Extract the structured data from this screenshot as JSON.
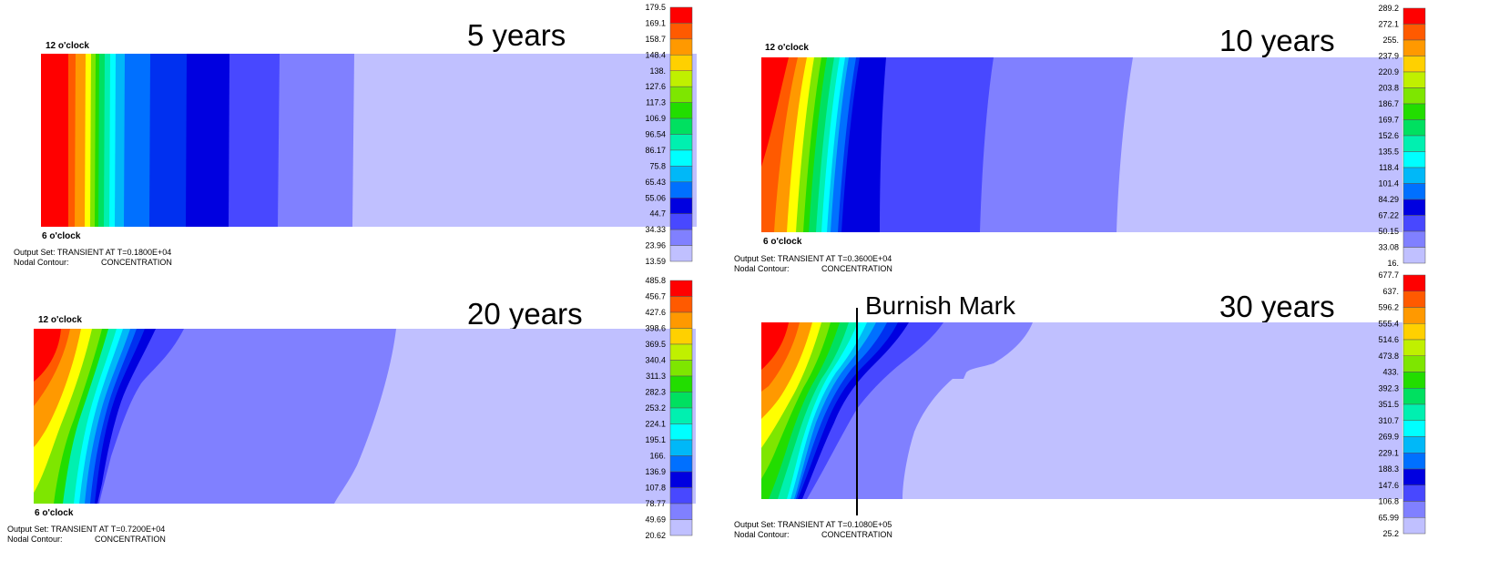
{
  "panels": [
    {
      "title": "5 years",
      "top_label": "12 o'clock",
      "bottom_label": "6 o'clock",
      "output_set": "Output Set: TRANSIENT AT T=0.1800E+04",
      "nodal_contour_key": "Nodal Contour:",
      "nodal_contour_value": "CONCENTRATION",
      "legend": [
        "179.5",
        "169.1",
        "158.7",
        "148.4",
        "138.",
        "127.6",
        "117.3",
        "106.9",
        "96.54",
        "86.17",
        "75.8",
        "65.43",
        "55.06",
        "44.7",
        "34.33",
        "23.96",
        "13.59"
      ]
    },
    {
      "title": "10 years",
      "top_label": "12 o'clock",
      "bottom_label": "6 o'clock",
      "output_set": "Output Set: TRANSIENT AT T=0.3600E+04",
      "nodal_contour_key": "Nodal Contour:",
      "nodal_contour_value": "CONCENTRATION",
      "legend": [
        "289.2",
        "272.1",
        "255.",
        "237.9",
        "220.9",
        "203.8",
        "186.7",
        "169.7",
        "152.6",
        "135.5",
        "118.4",
        "101.4",
        "84.29",
        "67.22",
        "50.15",
        "33.08",
        "16."
      ]
    },
    {
      "title": "20 years",
      "top_label": "12 o'clock",
      "bottom_label": "6 o'clock",
      "output_set": "Output Set: TRANSIENT AT T=0.7200E+04",
      "nodal_contour_key": "Nodal Contour:",
      "nodal_contour_value": "CONCENTRATION",
      "legend": [
        "485.8",
        "456.7",
        "427.6",
        "398.6",
        "369.5",
        "340.4",
        "311.3",
        "282.3",
        "253.2",
        "224.1",
        "195.1",
        "166.",
        "136.9",
        "107.8",
        "78.77",
        "49.69",
        "20.62"
      ]
    },
    {
      "title": "30 years",
      "top_label": "",
      "bottom_label": "",
      "output_set": "Output Set: TRANSIENT AT T=0.1080E+05",
      "nodal_contour_key": "Nodal Contour:",
      "nodal_contour_value": "CONCENTRATION",
      "legend": [
        "677.7",
        "637.",
        "596.2",
        "555.4",
        "514.6",
        "473.8",
        "433.",
        "392.3",
        "351.5",
        "310.7",
        "269.9",
        "229.1",
        "188.3",
        "147.6",
        "106.8",
        "65.99",
        "25.2"
      ]
    }
  ],
  "annotation": {
    "label": "Burnish Mark"
  },
  "colors": [
    "#ff0000",
    "#ff5a00",
    "#ff9900",
    "#ffd000",
    "#ffff00",
    "#c0f000",
    "#7ee600",
    "#22dd00",
    "#00e060",
    "#00f0b0",
    "#00ffff",
    "#00b8f8",
    "#0070ff",
    "#0030f0",
    "#0000e0",
    "#4848ff",
    "#8080ff",
    "#c0c0ff"
  ]
}
